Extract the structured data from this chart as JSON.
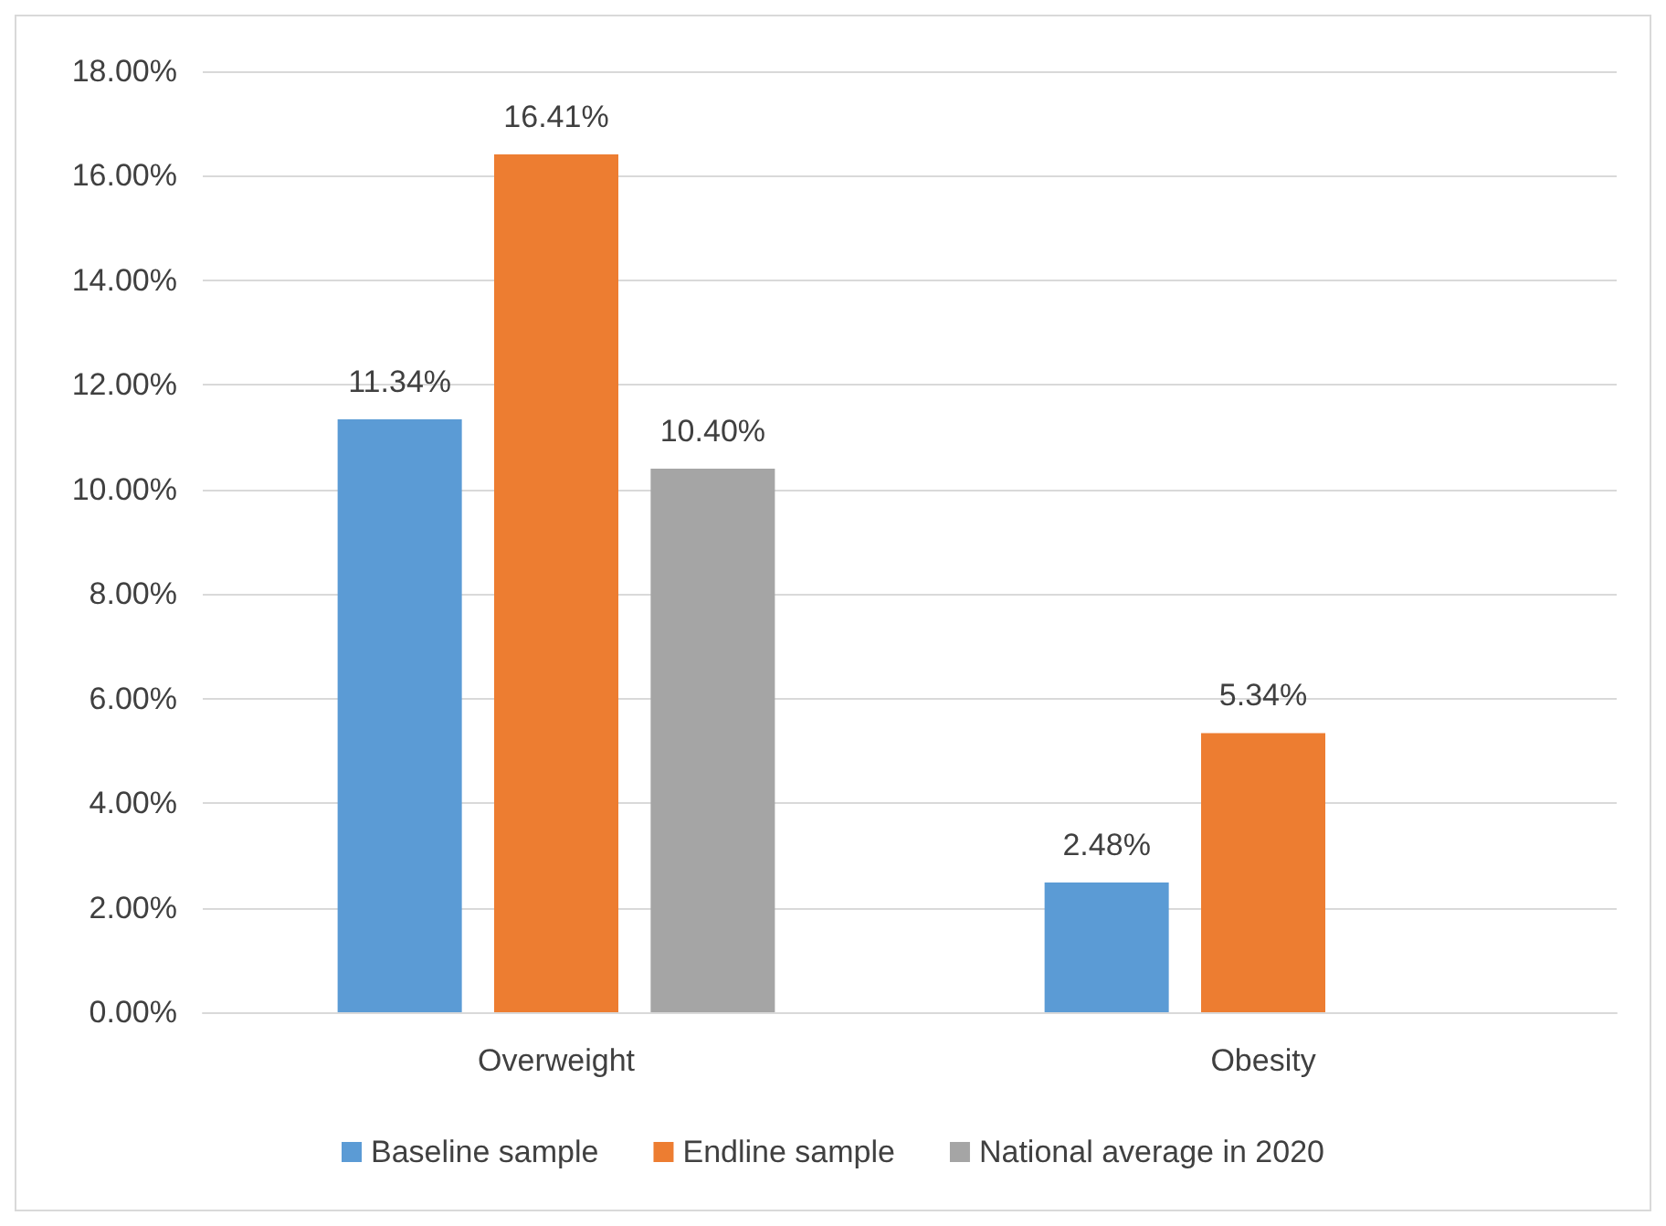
{
  "chart_data": {
    "type": "bar",
    "categories": [
      "Overweight",
      "Obesity"
    ],
    "series": [
      {
        "name": "Baseline sample",
        "color": "#5b9bd5",
        "values": [
          11.34,
          2.48
        ],
        "value_labels": [
          "11.34%",
          "2.48%"
        ]
      },
      {
        "name": "Endline sample",
        "color": "#ed7d31",
        "values": [
          16.41,
          5.34
        ],
        "value_labels": [
          "16.41%",
          "5.34%"
        ]
      },
      {
        "name": "National average in 2020",
        "color": "#a5a5a5",
        "values": [
          10.4,
          null
        ],
        "value_labels": [
          "10.40%",
          null
        ]
      }
    ],
    "ylim": [
      0,
      18
    ],
    "yticks": [
      {
        "value": 0,
        "label": "0.00%"
      },
      {
        "value": 2,
        "label": "2.00%"
      },
      {
        "value": 4,
        "label": "4.00%"
      },
      {
        "value": 6,
        "label": "6.00%"
      },
      {
        "value": 8,
        "label": "8.00%"
      },
      {
        "value": 10,
        "label": "10.00%"
      },
      {
        "value": 12,
        "label": "12.00%"
      },
      {
        "value": 14,
        "label": "14.00%"
      },
      {
        "value": 16,
        "label": "16.00%"
      },
      {
        "value": 18,
        "label": "18.00%"
      }
    ],
    "grid": "y",
    "legend": "bottom"
  }
}
